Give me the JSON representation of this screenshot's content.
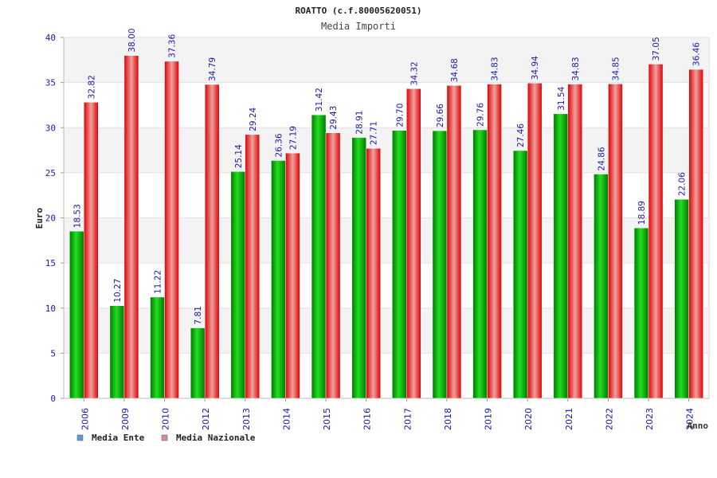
{
  "chart_data": {
    "type": "bar",
    "title": "ROATTO (c.f.80005620051)",
    "subtitle": "Media Importi",
    "xlabel": "Anno",
    "ylabel": "Euro",
    "ylim": [
      0,
      40
    ],
    "yticks": [
      0,
      5,
      10,
      15,
      20,
      25,
      30,
      35,
      40
    ],
    "grid": true,
    "legend_position": "bottom-left",
    "categories": [
      "2006",
      "2009",
      "2010",
      "2012",
      "2013",
      "2014",
      "2015",
      "2016",
      "2017",
      "2018",
      "2019",
      "2020",
      "2021",
      "2022",
      "2023",
      "2024"
    ],
    "series": [
      {
        "name": "Media Ente",
        "color": "#00bb00",
        "legend_color": "#5b9bd5",
        "values": [
          18.53,
          10.27,
          11.22,
          7.81,
          25.14,
          26.36,
          31.42,
          28.91,
          29.7,
          29.66,
          29.76,
          27.46,
          31.54,
          24.86,
          18.89,
          22.06
        ],
        "labels": [
          "18.53",
          "10.27",
          "11.22",
          "7.81",
          "25.14",
          "26.36",
          "31.42",
          "28.91",
          "29.70",
          "29.66",
          "29.76",
          "27.46",
          "31.54",
          "24.86",
          "18.89",
          "22.06"
        ]
      },
      {
        "name": "Media Nazionale",
        "color": "#ee1111",
        "legend_color": "#d98aa6",
        "values": [
          32.82,
          38.0,
          37.36,
          34.79,
          29.24,
          27.19,
          29.43,
          27.71,
          34.32,
          34.68,
          34.83,
          34.94,
          34.83,
          34.85,
          37.05,
          36.46
        ],
        "labels": [
          "32.82",
          "38.00",
          "37.36",
          "34.79",
          "29.24",
          "27.19",
          "29.43",
          "27.71",
          "34.32",
          "34.68",
          "34.83",
          "34.94",
          "34.83",
          "34.85",
          "37.05",
          "36.46"
        ]
      }
    ]
  }
}
